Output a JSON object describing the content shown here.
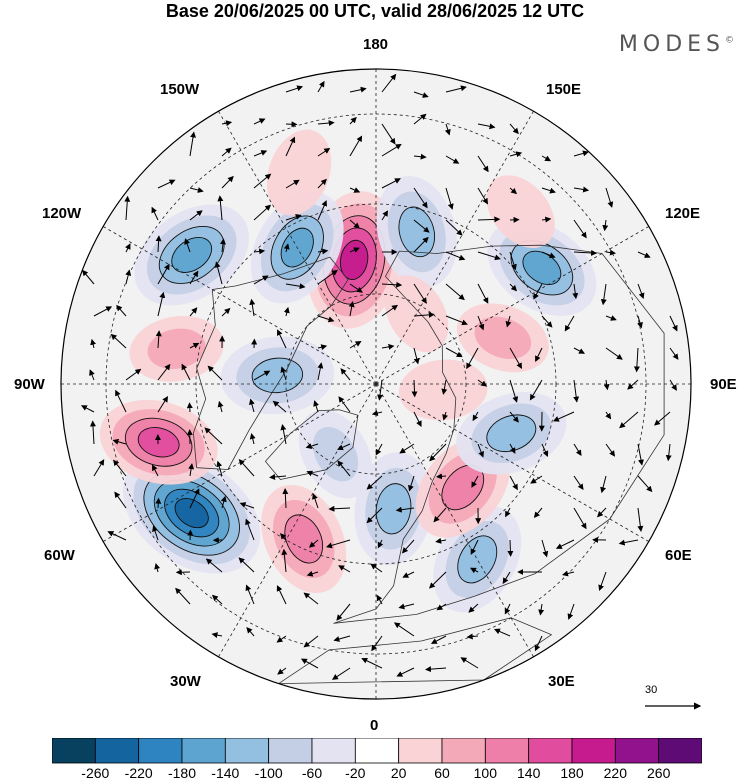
{
  "title": "Base 20/06/2025 00 UTC, valid 28/06/2025 12 UTC",
  "brand": "MODES",
  "brand_mark": "©",
  "longitude_labels": {
    "top": "180",
    "bottom": "0",
    "left": "90W",
    "right": "90E",
    "upper_left_1": "150W",
    "upper_left_2": "120W",
    "upper_right_1": "150E",
    "upper_right_2": "120E",
    "lower_left_1": "60W",
    "lower_left_2": "30W",
    "lower_right_1": "60E",
    "lower_right_2": "30E"
  },
  "reference_vector": "30",
  "colorbar": {
    "colors": [
      "#08405f",
      "#1464a0",
      "#2e84c0",
      "#5da4d0",
      "#93bfe0",
      "#c4cfe6",
      "#e4e3f1",
      "#ffffff",
      "#f9d3d6",
      "#f4a9b8",
      "#ee7fa8",
      "#e24c9e",
      "#c51b8e",
      "#92118c",
      "#5e0b75"
    ],
    "labels": [
      "-260",
      "-220",
      "-180",
      "-140",
      "-100",
      "-60",
      "-20",
      "20",
      "60",
      "100",
      "140",
      "180",
      "220",
      "260"
    ]
  },
  "anomaly_features": [
    {
      "lon": -170,
      "lat": 62,
      "value": 220
    },
    {
      "lon": 165,
      "lat": 55,
      "value": -140
    },
    {
      "lon": -150,
      "lat": 55,
      "value": -160
    },
    {
      "lon": -125,
      "lat": 40,
      "value": -180
    },
    {
      "lon": -95,
      "lat": 68,
      "value": -140
    },
    {
      "lon": -55,
      "lat": 40,
      "value": -260
    },
    {
      "lon": -100,
      "lat": 45,
      "value": 80
    },
    {
      "lon": -75,
      "lat": 40,
      "value": 160
    },
    {
      "lon": -25,
      "lat": 52,
      "value": 140
    },
    {
      "lon": 8,
      "lat": 62,
      "value": -140
    },
    {
      "lon": 30,
      "lat": 45,
      "value": -140
    },
    {
      "lon": 40,
      "lat": 60,
      "value": 140
    },
    {
      "lon": 70,
      "lat": 58,
      "value": -140
    },
    {
      "lon": 125,
      "lat": 45,
      "value": -160
    },
    {
      "lon": 110,
      "lat": 60,
      "value": 80
    },
    {
      "lon": 140,
      "lat": 40,
      "value": 40
    },
    {
      "lon": -160,
      "lat": 40,
      "value": 60
    },
    {
      "lon": 85,
      "lat": 75,
      "value": 60
    },
    {
      "lon": -30,
      "lat": 72,
      "value": -80
    },
    {
      "lon": 150,
      "lat": 72,
      "value": 40
    }
  ]
}
